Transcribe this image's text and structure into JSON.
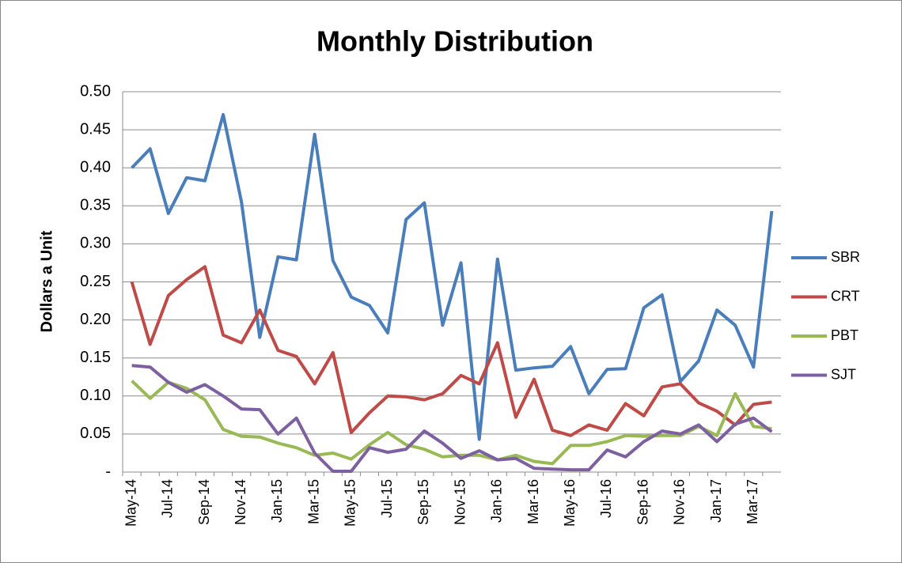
{
  "chart_data": {
    "type": "line",
    "title": "Monthly Distribution",
    "y_label": "Dollars a Unit",
    "categories": [
      "May-14",
      null,
      "Jul-14",
      null,
      "Sep-14",
      null,
      "Nov-14",
      null,
      "Jan-15",
      null,
      "Mar-15",
      null,
      "May-15",
      null,
      "Jul-15",
      null,
      "Sep-15",
      null,
      "Nov-15",
      null,
      "Jan-16",
      null,
      "Mar-16",
      null,
      "May-16",
      null,
      "Jul-16",
      null,
      "Sep-16",
      null,
      "Nov-16",
      null,
      "Jan-17",
      null,
      "Mar-17",
      null
    ],
    "series": [
      {
        "name": "SBR",
        "color": "#4a7ebb",
        "values": [
          0.4,
          0.425,
          0.34,
          0.387,
          0.383,
          0.47,
          0.355,
          0.177,
          0.283,
          0.279,
          0.444,
          0.278,
          0.23,
          0.219,
          0.183,
          0.332,
          0.354,
          0.193,
          0.275,
          0.043,
          0.28,
          0.134,
          0.137,
          0.139,
          0.165,
          0.103,
          0.135,
          0.136,
          0.216,
          0.233,
          0.119,
          0.146,
          0.213,
          0.193,
          0.138,
          0.343
        ]
      },
      {
        "name": "CRT",
        "color": "#be4b48",
        "values": [
          0.25,
          0.168,
          0.232,
          0.253,
          0.27,
          0.18,
          0.17,
          0.213,
          0.16,
          0.152,
          0.116,
          0.157,
          0.052,
          0.078,
          0.1,
          0.099,
          0.095,
          0.103,
          0.127,
          0.116,
          0.17,
          0.072,
          0.122,
          0.055,
          0.048,
          0.062,
          0.055,
          0.09,
          0.074,
          0.112,
          0.116,
          0.091,
          0.08,
          0.062,
          0.089,
          0.092
        ]
      },
      {
        "name": "PBT",
        "color": "#98b954",
        "values": [
          0.12,
          0.097,
          0.118,
          0.11,
          0.095,
          0.056,
          0.047,
          0.046,
          0.038,
          0.032,
          0.022,
          0.025,
          0.017,
          0.036,
          0.052,
          0.036,
          0.03,
          0.02,
          0.022,
          0.022,
          0.016,
          0.022,
          0.014,
          0.011,
          0.035,
          0.035,
          0.04,
          0.048,
          0.047,
          0.048,
          0.048,
          0.06,
          0.048,
          0.103,
          0.06,
          0.057
        ]
      },
      {
        "name": "SJT",
        "color": "#7d60a0",
        "values": [
          0.14,
          0.138,
          0.118,
          0.105,
          0.115,
          0.1,
          0.083,
          0.082,
          0.05,
          0.071,
          0.025,
          0.001,
          0.001,
          0.032,
          0.026,
          0.03,
          0.054,
          0.038,
          0.018,
          0.028,
          0.016,
          0.018,
          0.005,
          0.004,
          0.003,
          0.003,
          0.029,
          0.02,
          0.04,
          0.054,
          0.05,
          0.062,
          0.04,
          0.063,
          0.071,
          0.053
        ]
      }
    ],
    "ylim": [
      0,
      0.5
    ],
    "yticks": [
      {
        "value": 0,
        "label": "-"
      },
      0.05,
      {
        "value": 0.1,
        "label": "0.10"
      },
      0.15,
      {
        "value": 0.2,
        "label": "0.20"
      },
      0.25,
      {
        "value": 0.3,
        "label": "0.30"
      },
      0.35,
      {
        "value": 0.4,
        "label": "0.40"
      },
      0.45,
      {
        "value": 0.5,
        "label": "0.50"
      }
    ],
    "grid": true,
    "legend": "right"
  }
}
